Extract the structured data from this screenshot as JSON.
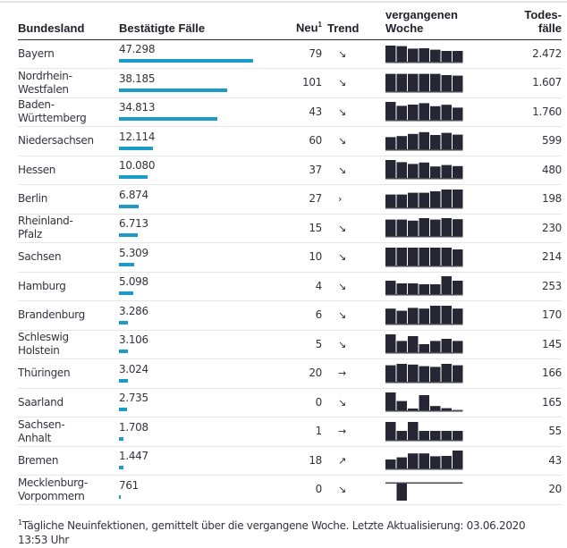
{
  "chart_data": {
    "type": "table",
    "columns": [
      "Bundesland",
      "Bestätigte Fälle",
      "Neu",
      "Trend",
      "vergangenen Woche",
      "Todes-fälle"
    ],
    "header": {
      "land": "Bundesland",
      "cases": "Bestätigte Fälle",
      "neu": "Neu",
      "neu_sup": "1",
      "trend": "Trend",
      "week_line1": "vergangenen",
      "week_line2": "Woche",
      "death_line1": "Todes-",
      "death_line2": "fälle"
    },
    "cases_max": 47298,
    "rows": [
      {
        "land_l1": "Bayern",
        "land_l2": "",
        "cases": "47.298",
        "cases_value": 47298,
        "neu": "79",
        "trend": "↘",
        "deaths": "2.472",
        "week": [
          0.9,
          0.87,
          0.73,
          0.75,
          0.67,
          0.6,
          0.6
        ]
      },
      {
        "land_l1": "Nordrhein-",
        "land_l2": "Westfalen",
        "cases": "38.185",
        "cases_value": 38185,
        "neu": "101",
        "trend": "↘",
        "deaths": "1.607",
        "week": [
          0.97,
          0.97,
          0.97,
          0.97,
          0.97,
          0.9,
          0.87
        ]
      },
      {
        "land_l1": "Baden-",
        "land_l2": "Württemberg",
        "cases": "34.813",
        "cases_value": 34813,
        "neu": "43",
        "trend": "↘",
        "deaths": "1.760",
        "week": [
          1.0,
          0.78,
          0.85,
          0.93,
          0.76,
          0.84,
          0.68
        ]
      },
      {
        "land_l1": "Niedersachsen",
        "land_l2": "",
        "cases": "12.114",
        "cases_value": 12114,
        "neu": "60",
        "trend": "↘",
        "deaths": "599",
        "week": [
          0.68,
          0.74,
          0.86,
          0.96,
          0.8,
          0.92,
          0.82
        ]
      },
      {
        "land_l1": "Hessen",
        "land_l2": "",
        "cases": "10.080",
        "cases_value": 10080,
        "neu": "37",
        "trend": "↘",
        "deaths": "480",
        "week": [
          1.0,
          0.88,
          0.78,
          0.86,
          0.64,
          0.72,
          0.66
        ]
      },
      {
        "land_l1": "Berlin",
        "land_l2": "",
        "cases": "6.874",
        "cases_value": 6874,
        "neu": "27",
        "trend": "›",
        "deaths": "198",
        "week": [
          0.72,
          0.72,
          0.82,
          0.82,
          0.9,
          1.0,
          1.0
        ]
      },
      {
        "land_l1": "Rheinland-",
        "land_l2": "Pfalz",
        "cases": "6.713",
        "cases_value": 6713,
        "neu": "15",
        "trend": "↘",
        "deaths": "230",
        "week": [
          0.92,
          0.92,
          0.86,
          1.0,
          0.92,
          1.0,
          0.94
        ]
      },
      {
        "land_l1": "Sachsen",
        "land_l2": "",
        "cases": "5.309",
        "cases_value": 5309,
        "neu": "10",
        "trend": "↘",
        "deaths": "214",
        "week": [
          1.0,
          1.0,
          1.0,
          1.0,
          1.0,
          1.0,
          0.9
        ]
      },
      {
        "land_l1": "Hamburg",
        "land_l2": "",
        "cases": "5.098",
        "cases_value": 5098,
        "neu": "4",
        "trend": "↘",
        "deaths": "253",
        "week": [
          0.75,
          0.6,
          0.6,
          0.55,
          0.55,
          1.0,
          0.75
        ]
      },
      {
        "land_l1": "Brandenburg",
        "land_l2": "",
        "cases": "3.286",
        "cases_value": 3286,
        "neu": "6",
        "trend": "↘",
        "deaths": "170",
        "week": [
          0.84,
          0.72,
          0.88,
          0.84,
          1.0,
          1.0,
          0.84
        ]
      },
      {
        "land_l1": "Schleswig",
        "land_l2": "Holstein",
        "cases": "3.106",
        "cases_value": 3106,
        "neu": "5",
        "trend": "↘",
        "deaths": "145",
        "week": [
          1.0,
          0.63,
          0.9,
          0.45,
          0.63,
          0.75,
          0.63
        ]
      },
      {
        "land_l1": "Thüringen",
        "land_l2": "",
        "cases": "3.024",
        "cases_value": 3024,
        "neu": "20",
        "trend": "→",
        "deaths": "166",
        "week": [
          0.92,
          1.0,
          0.96,
          0.87,
          0.83,
          1.0,
          0.92
        ]
      },
      {
        "land_l1": "Saarland",
        "land_l2": "",
        "cases": "2.735",
        "cases_value": 2735,
        "neu": "0",
        "trend": "↘",
        "deaths": "165",
        "week": [
          1.0,
          0.52,
          0.1,
          0.85,
          0.24,
          0.12,
          0.02
        ]
      },
      {
        "land_l1": "Sachsen-",
        "land_l2": "Anhalt",
        "cases": "1.708",
        "cases_value": 1708,
        "neu": "1",
        "trend": "→",
        "deaths": "55",
        "week": [
          1.0,
          0.5,
          1.0,
          0.5,
          0.5,
          0.5,
          0.5
        ]
      },
      {
        "land_l1": "Bremen",
        "land_l2": "",
        "cases": "1.447",
        "cases_value": 1447,
        "neu": "18",
        "trend": "↗",
        "deaths": "43",
        "week": [
          0.5,
          0.62,
          0.84,
          0.84,
          0.68,
          0.7,
          1.0
        ]
      },
      {
        "land_l1": "Mecklenburg-",
        "land_l2": "Vorpommern",
        "cases": "761",
        "cases_value": 761,
        "neu": "0",
        "trend": "↘",
        "deaths": "20",
        "week": [
          0,
          -1.0,
          0,
          0,
          0,
          0,
          0
        ]
      }
    ]
  },
  "footnote": {
    "sup": "1",
    "text": "Tägliche Neuinfektionen, gemittelt über die vergangene Woche. Letzte Aktualisierung: 03.06.2020 13:53 Uhr"
  },
  "colors": {
    "case_bar": "#1a9bc8",
    "spark_bar": "#262634",
    "spark_base": "#4a4a52"
  }
}
